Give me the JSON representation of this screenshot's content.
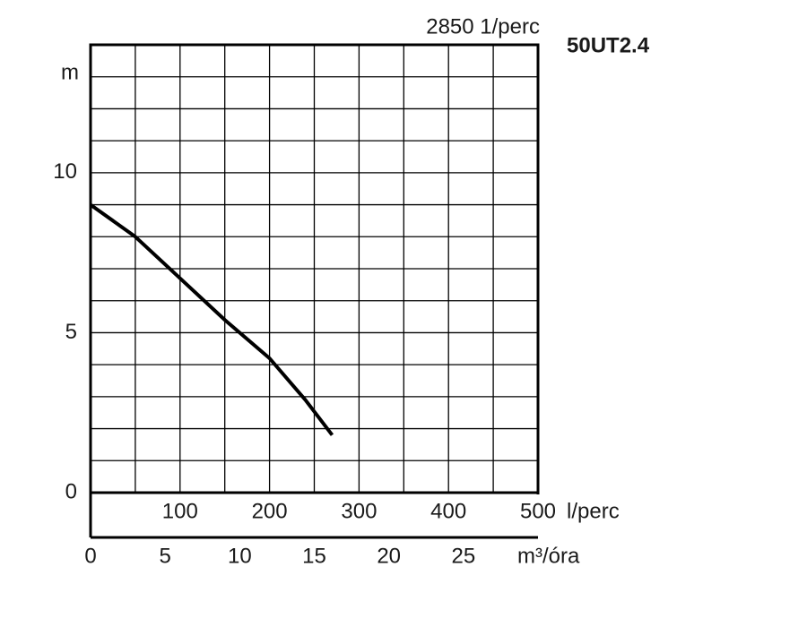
{
  "chart_data": {
    "type": "line",
    "title": "50UT2.4",
    "subtitle": "2850 1/perc",
    "ylabel": "m",
    "xlabel": "l/perc",
    "x2label": "m³/óra",
    "x": [
      0,
      50,
      100,
      150,
      200,
      240,
      270
    ],
    "series": [
      {
        "name": "50UT2.4",
        "color": "#000000",
        "values": [
          9,
          8.0,
          6.7,
          5.4,
          4.2,
          2.9,
          1.8
        ]
      }
    ],
    "xlim": [
      0,
      500
    ],
    "xticks": [
      100,
      200,
      300,
      400,
      500
    ],
    "x2lim": [
      0,
      30
    ],
    "x2ticks": [
      0,
      5,
      10,
      15,
      20,
      25
    ],
    "ylim": [
      0,
      14
    ],
    "yticks": [
      0,
      5,
      10
    ],
    "xgrid": [
      0,
      50,
      100,
      150,
      200,
      250,
      300,
      350,
      400,
      450,
      500
    ],
    "ygrid": [
      0,
      1,
      2,
      3,
      4,
      5,
      6,
      7,
      8,
      9,
      10,
      11,
      12,
      13,
      14
    ],
    "grid": true
  }
}
